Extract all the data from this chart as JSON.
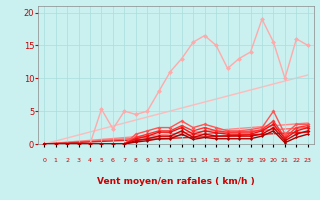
{
  "background_color": "#caf0f0",
  "grid_color": "#aadddd",
  "xlabel": "Vent moyen/en rafales ( km/h )",
  "xlabel_color": "#cc0000",
  "tick_color": "#cc0000",
  "ylim": [
    0,
    21
  ],
  "xlim": [
    -0.5,
    23.5
  ],
  "yticks": [
    0,
    5,
    10,
    15,
    20
  ],
  "xticks": [
    0,
    1,
    2,
    3,
    4,
    5,
    6,
    7,
    8,
    9,
    10,
    11,
    12,
    13,
    14,
    15,
    16,
    17,
    18,
    19,
    20,
    21,
    22,
    23
  ],
  "arrow_symbols": [
    "↙",
    "↙",
    "↙",
    "↙",
    "↙",
    "↙",
    "↙",
    "↙",
    "→",
    "↙",
    "↓",
    "→",
    "→",
    "→",
    "↗",
    "→",
    "→",
    "↘",
    "↙",
    "↗",
    "↙",
    "↙",
    "↗",
    "↘"
  ],
  "trend_light": {
    "x": [
      0,
      23
    ],
    "y": [
      0,
      10.5
    ],
    "color": "#ffbbbb",
    "lw": 1.0
  },
  "trend_med1": {
    "x": [
      0,
      23
    ],
    "y": [
      0,
      3.2
    ],
    "color": "#ff8888",
    "lw": 1.0
  },
  "trend_med2": {
    "x": [
      0,
      23
    ],
    "y": [
      0,
      2.5
    ],
    "color": "#ff6666",
    "lw": 1.0
  },
  "trend_dark": {
    "x": [
      0,
      23
    ],
    "y": [
      0,
      1.8
    ],
    "color": "#dd2222",
    "lw": 1.0
  },
  "line_light": {
    "x": [
      0,
      1,
      2,
      3,
      4,
      5,
      6,
      7,
      8,
      9,
      10,
      11,
      12,
      13,
      14,
      15,
      16,
      17,
      18,
      19,
      20,
      21,
      22,
      23
    ],
    "y": [
      0,
      0,
      0,
      0,
      0,
      5.3,
      2.3,
      5.0,
      4.5,
      5.0,
      8.0,
      11.0,
      13.0,
      15.5,
      16.5,
      15.0,
      11.5,
      13.0,
      14.0,
      19.0,
      15.5,
      10.0,
      16.0,
      15.0
    ],
    "color": "#ffaaaa",
    "lw": 1.0,
    "ms": 2.5
  },
  "line_med1": {
    "x": [
      0,
      1,
      2,
      3,
      4,
      5,
      6,
      7,
      8,
      9,
      10,
      11,
      12,
      13,
      14,
      15,
      16,
      17,
      18,
      19,
      20,
      21,
      22,
      23
    ],
    "y": [
      0,
      0,
      0,
      0,
      0,
      0,
      0,
      0,
      1.5,
      2.0,
      2.5,
      2.5,
      3.5,
      2.5,
      3.0,
      2.5,
      2.0,
      2.0,
      2.2,
      2.5,
      5.0,
      1.5,
      3.0,
      3.0
    ],
    "color": "#ff5555",
    "lw": 1.0,
    "ms": 2.0
  },
  "line_med2": {
    "x": [
      0,
      1,
      2,
      3,
      4,
      5,
      6,
      7,
      8,
      9,
      10,
      11,
      12,
      13,
      14,
      15,
      16,
      17,
      18,
      19,
      20,
      21,
      22,
      23
    ],
    "y": [
      0,
      0,
      0,
      0,
      0,
      0,
      0,
      0,
      1.0,
      1.5,
      2.0,
      2.0,
      2.8,
      2.0,
      2.5,
      2.0,
      1.8,
      1.8,
      1.8,
      2.2,
      3.5,
      1.0,
      2.5,
      2.8
    ],
    "color": "#ff3333",
    "lw": 1.0,
    "ms": 2.0
  },
  "line_med3": {
    "x": [
      0,
      1,
      2,
      3,
      4,
      5,
      6,
      7,
      8,
      9,
      10,
      11,
      12,
      13,
      14,
      15,
      16,
      17,
      18,
      19,
      20,
      21,
      22,
      23
    ],
    "y": [
      0,
      0,
      0,
      0,
      0,
      0,
      0,
      0,
      0.8,
      1.2,
      1.8,
      1.8,
      2.5,
      1.5,
      2.0,
      1.7,
      1.5,
      1.5,
      1.5,
      2.0,
      3.0,
      0.8,
      2.0,
      2.5
    ],
    "color": "#ee1111",
    "lw": 1.0,
    "ms": 2.0
  },
  "line_dark1": {
    "x": [
      0,
      1,
      2,
      3,
      4,
      5,
      6,
      7,
      8,
      9,
      10,
      11,
      12,
      13,
      14,
      15,
      16,
      17,
      18,
      19,
      20,
      21,
      22,
      23
    ],
    "y": [
      0,
      0,
      0,
      0,
      0,
      0,
      0,
      0,
      0.5,
      0.8,
      1.2,
      1.2,
      2.0,
      1.0,
      1.5,
      1.2,
      1.2,
      1.2,
      1.2,
      1.5,
      2.5,
      0.5,
      1.5,
      2.0
    ],
    "color": "#cc0000",
    "lw": 1.0,
    "ms": 2.0
  },
  "line_dark2": {
    "x": [
      0,
      1,
      2,
      3,
      4,
      5,
      6,
      7,
      8,
      9,
      10,
      11,
      12,
      13,
      14,
      15,
      16,
      17,
      18,
      19,
      20,
      21,
      22,
      23
    ],
    "y": [
      0,
      0,
      0,
      0,
      0,
      0,
      0,
      0,
      0.3,
      0.5,
      0.8,
      0.8,
      1.5,
      0.7,
      1.0,
      0.8,
      0.8,
      0.8,
      0.8,
      1.2,
      2.0,
      0.2,
      1.0,
      1.5
    ],
    "color": "#aa0000",
    "lw": 1.0,
    "ms": 1.5
  }
}
